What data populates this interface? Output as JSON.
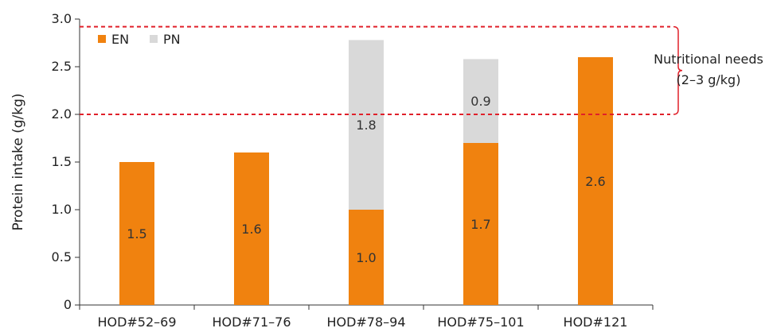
{
  "chart_data": {
    "type": "bar",
    "stacked": true,
    "categories": [
      "HOD#52–69",
      "HOD#71–76",
      "HOD#78–94",
      "HOD#75–101",
      "HOD#121"
    ],
    "series": [
      {
        "name": "EN",
        "values": [
          1.5,
          1.6,
          1.0,
          1.7,
          2.6
        ],
        "labels": [
          "1.5",
          "1.6",
          "1.0",
          "1.7",
          "2.6"
        ],
        "color": "#f0820f"
      },
      {
        "name": "PN",
        "values": [
          0,
          0,
          1.8,
          0.9,
          0
        ],
        "labels": [
          "",
          "",
          "1.8",
          "0.9",
          ""
        ],
        "color": "#d9d9d9"
      }
    ],
    "bar_totals": [
      1.5,
      1.6,
      2.78,
      2.58,
      2.57
    ],
    "ylabel": "Protein intake (g/kg)",
    "xlabel": "",
    "ylim": [
      0,
      3.0
    ],
    "yticks": [
      "0",
      "0.5",
      "1.0",
      "1.5",
      "2.0",
      "2.5",
      "3.0"
    ],
    "ytick_values": [
      0,
      0.5,
      1.0,
      1.5,
      2.0,
      2.5,
      3.0
    ],
    "grid": false,
    "legend_position": "top-left",
    "reference_lines": [
      {
        "y": 2.92,
        "color": "#e0202a",
        "style": "dashed"
      },
      {
        "y": 2.0,
        "color": "#e0202a",
        "style": "dashed"
      }
    ],
    "annotation": {
      "line1": "Nutritional needs",
      "line2": "(2–3 g/kg)",
      "bracket_color": "#e0202a"
    }
  }
}
